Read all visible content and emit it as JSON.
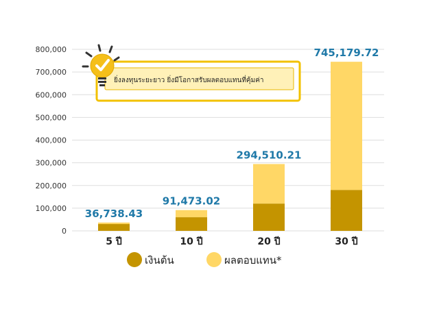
{
  "chart_data": {
    "type": "bar",
    "stacked": true,
    "categories": [
      "5 ปี",
      "10 ปี",
      "20 ปี",
      "30 ปี"
    ],
    "series": [
      {
        "name": "เงินต้น",
        "values": [
          30000,
          60000,
          120000,
          180000
        ]
      },
      {
        "name": "ผลตอบแทน*",
        "values": [
          6738.43,
          31473.02,
          174510.21,
          565179.72
        ]
      }
    ],
    "totals": [
      36738.43,
      91473.02,
      294510.21,
      745179.72
    ],
    "data_labels": [
      "36,738.43",
      "91,473.02",
      "294,510.21",
      "745,179.72"
    ],
    "yticks": [
      0,
      100000,
      200000,
      300000,
      400000,
      500000,
      600000,
      700000,
      800000
    ],
    "ytick_labels": [
      "0",
      "100,000",
      "200,000",
      "300,000",
      "400,000",
      "500,000",
      "600,000",
      "700,000",
      "800,000"
    ],
    "ylim": [
      0,
      800000
    ],
    "grid": true,
    "legend_position": "bottom",
    "title": "",
    "xlabel": "",
    "ylabel": "",
    "annotation": "ยิ่งลงทุนระยะยาว ยิ่งมีโอกาสรับผลตอบแทนที่คุ้มค่า",
    "annotation_icon": "lightbulb-check-icon"
  },
  "colors": {
    "principal": "#C49400",
    "return": "#FFD766",
    "data_label": "#1F79A8",
    "grid": "#DDDDDD",
    "callout_border": "#F2C100",
    "callout_fill": "#FFF1B8",
    "icon_fill": "#F5BF1A"
  }
}
